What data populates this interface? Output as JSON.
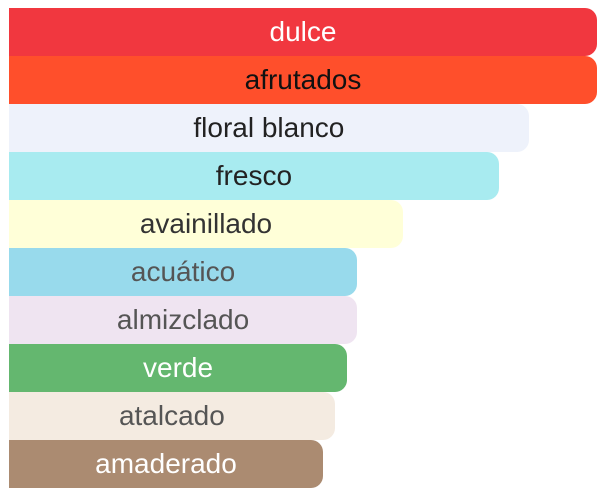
{
  "chart_data": {
    "type": "bar",
    "orientation": "horizontal",
    "categories": [
      "dulce",
      "afrutados",
      "floral blanco",
      "fresco",
      "avainillado",
      "acuático",
      "almizclado",
      "verde",
      "atalcado",
      "amaderado"
    ],
    "values": [
      100,
      100,
      88.4,
      83.3,
      67.0,
      59.2,
      59.2,
      57.5,
      55.4,
      53.4
    ],
    "colors": [
      "#f1373f",
      "#ff4f2b",
      "#eef2fb",
      "#a8ebf0",
      "#ffffd8",
      "#98daec",
      "#efe4f1",
      "#64b76f",
      "#f4ebe1",
      "#ab8b71"
    ],
    "label_colors": [
      "#ffffff",
      "#111111",
      "#222222",
      "#222222",
      "#333333",
      "#555555",
      "#555555",
      "#ffffff",
      "#555555",
      "#ffffff"
    ],
    "xlim": [
      0,
      100
    ],
    "title": "",
    "xlabel": "",
    "ylabel": "",
    "grid": false,
    "legend": "none"
  }
}
